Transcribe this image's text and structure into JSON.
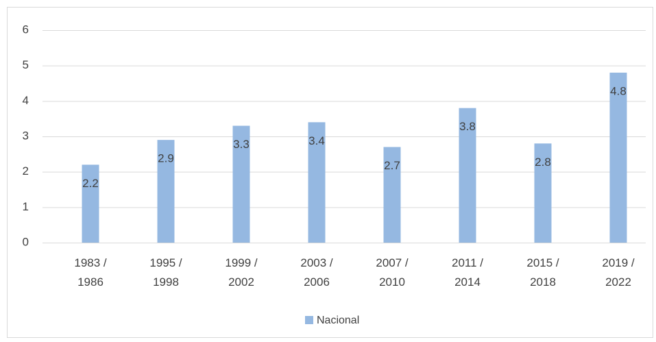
{
  "chart_data": {
    "type": "bar",
    "categories": [
      "1983 / 1986",
      "1995 / 1998",
      "1999 / 2002",
      "2003 / 2006",
      "2007 / 2010",
      "2011 / 2014",
      "2015 / 2018",
      "2019 / 2022"
    ],
    "series": [
      {
        "name": "Nacional",
        "color": "#95b8e1",
        "values": [
          2.2,
          2.9,
          3.3,
          3.4,
          2.7,
          3.8,
          2.8,
          4.8
        ]
      }
    ],
    "ylim": [
      0,
      6
    ],
    "yticks": [
      0,
      1,
      2,
      3,
      4,
      5,
      6
    ],
    "grid": true,
    "legend": "bottom"
  }
}
